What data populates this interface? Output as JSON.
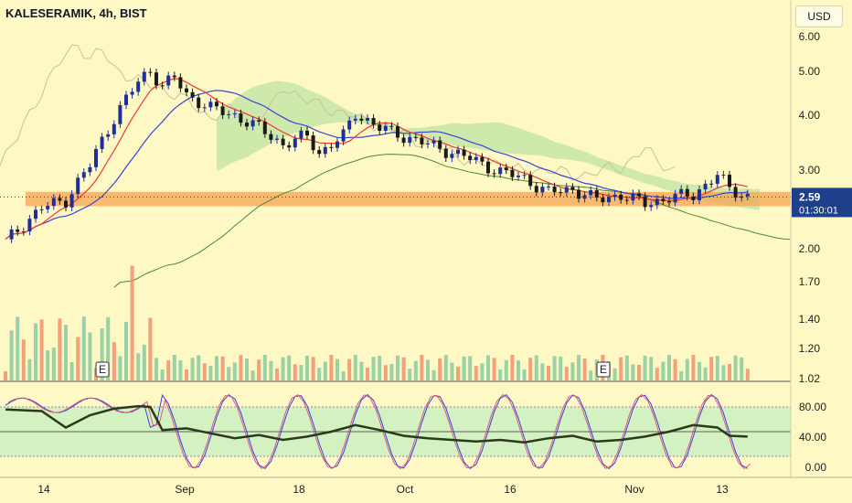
{
  "header": {
    "title": "KALESERAMIK, 4h, BIST",
    "currency": "USD"
  },
  "price_tag": {
    "value": "2.59",
    "countdown": "01:30:01"
  },
  "colors": {
    "background": "#fdf8c4",
    "up": "#1e2f9a",
    "down": "#1a1a1a",
    "cloud_up": "#c7e6a8",
    "cloud_down": "#c8efc0",
    "zone": "#f7a654",
    "tenkan": "#ea3b2e",
    "kijun": "#3845d6",
    "lagging": "#c9c29a",
    "rsi": "#2a3a1a",
    "stoch_k": "#3a3fe0",
    "stoch_d": "#e05a7a",
    "vol_up": "#7fc8a0",
    "vol_down": "#f08a6a"
  },
  "markers": [
    {
      "label": "E"
    },
    {
      "label": "E"
    }
  ],
  "chart_data": {
    "type": "candlestick",
    "price_axis": {
      "scale": "log",
      "ticks": [
        "6.00",
        "5.00",
        "4.00",
        "3.00",
        "2.59",
        "2.00",
        "1.70",
        "1.40",
        "1.20",
        "1.02"
      ]
    },
    "time_axis": {
      "ticks": [
        "14",
        "Sep",
        "18",
        "Oct",
        "16",
        "Nov",
        "13"
      ]
    },
    "support_zone": [
      2.47,
      2.66
    ],
    "last_price": 2.59,
    "price_path": [
      [
        0,
        2.05
      ],
      [
        6,
        2.45
      ],
      [
        10,
        2.55
      ],
      [
        14,
        3.05
      ],
      [
        18,
        3.9
      ],
      [
        22,
        4.7
      ],
      [
        24,
        5.0
      ],
      [
        26,
        4.6
      ],
      [
        28,
        4.8
      ],
      [
        30,
        4.4
      ],
      [
        34,
        4.1
      ],
      [
        38,
        3.95
      ],
      [
        42,
        3.7
      ],
      [
        46,
        3.4
      ],
      [
        50,
        3.55
      ],
      [
        52,
        3.25
      ],
      [
        56,
        3.55
      ],
      [
        58,
        4.0
      ],
      [
        62,
        3.7
      ],
      [
        66,
        3.55
      ],
      [
        70,
        3.4
      ],
      [
        76,
        3.2
      ],
      [
        82,
        2.95
      ],
      [
        86,
        2.85
      ],
      [
        90,
        2.65
      ],
      [
        94,
        2.7
      ],
      [
        98,
        2.55
      ],
      [
        102,
        2.62
      ],
      [
        106,
        2.5
      ],
      [
        110,
        2.58
      ],
      [
        114,
        2.62
      ],
      [
        118,
        2.9
      ],
      [
        120,
        2.7
      ],
      [
        123,
        2.6
      ]
    ],
    "rsi_axis": {
      "ticks": [
        "80.00",
        "40.00",
        "0.00"
      ],
      "band": [
        20,
        80
      ],
      "mid": 50
    },
    "rsi": [
      [
        0,
        77
      ],
      [
        6,
        75
      ],
      [
        10,
        55
      ],
      [
        14,
        70
      ],
      [
        18,
        78
      ],
      [
        22,
        81
      ],
      [
        24,
        80
      ],
      [
        26,
        52
      ],
      [
        30,
        54
      ],
      [
        34,
        48
      ],
      [
        38,
        42
      ],
      [
        42,
        46
      ],
      [
        46,
        40
      ],
      [
        50,
        44
      ],
      [
        54,
        50
      ],
      [
        58,
        58
      ],
      [
        62,
        52
      ],
      [
        66,
        45
      ],
      [
        70,
        42
      ],
      [
        74,
        40
      ],
      [
        78,
        38
      ],
      [
        82,
        40
      ],
      [
        86,
        37
      ],
      [
        90,
        42
      ],
      [
        94,
        45
      ],
      [
        98,
        38
      ],
      [
        102,
        40
      ],
      [
        106,
        44
      ],
      [
        110,
        50
      ],
      [
        114,
        58
      ],
      [
        118,
        55
      ],
      [
        120,
        45
      ],
      [
        123,
        44
      ]
    ]
  }
}
